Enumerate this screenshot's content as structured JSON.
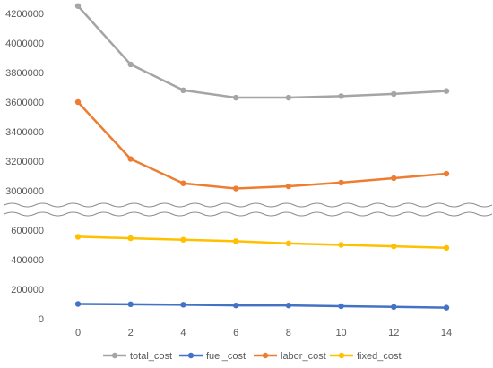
{
  "chart_data": {
    "type": "line",
    "title": "",
    "xlabel": "",
    "ylabel": "",
    "x": [
      0,
      2,
      4,
      6,
      8,
      10,
      12,
      14
    ],
    "axis_break": true,
    "upper_panel": {
      "ylim": [
        3000000,
        4200000
      ],
      "yticks": [
        "4200000",
        "4000000",
        "3800000",
        "3600000",
        "3400000",
        "3200000",
        "3000000"
      ],
      "series": [
        "total_cost",
        "labor_cost"
      ]
    },
    "lower_panel": {
      "ylim": [
        0,
        600000
      ],
      "yticks": [
        "600000",
        "400000",
        "200000",
        "0"
      ],
      "series": [
        "fixed_cost",
        "fuel_cost"
      ]
    },
    "xticks": [
      "0",
      "2",
      "4",
      "6",
      "8",
      "10",
      "12",
      "14"
    ],
    "series": [
      {
        "name": "total_cost",
        "color": "#a5a5a5",
        "values": [
          4250000,
          3855000,
          3680000,
          3630000,
          3630000,
          3640000,
          3655000,
          3675000
        ]
      },
      {
        "name": "fuel_cost",
        "color": "#4472c4",
        "values": [
          100000,
          98000,
          95000,
          90000,
          90000,
          85000,
          80000,
          75000
        ]
      },
      {
        "name": "labor_cost",
        "color": "#ed7d31",
        "values": [
          3600000,
          3215000,
          3050000,
          3015000,
          3030000,
          3055000,
          3085000,
          3115000
        ]
      },
      {
        "name": "fixed_cost",
        "color": "#ffc000",
        "values": [
          555000,
          545000,
          535000,
          525000,
          510000,
          500000,
          490000,
          480000
        ]
      }
    ],
    "legend_position": "bottom",
    "grid": false
  }
}
